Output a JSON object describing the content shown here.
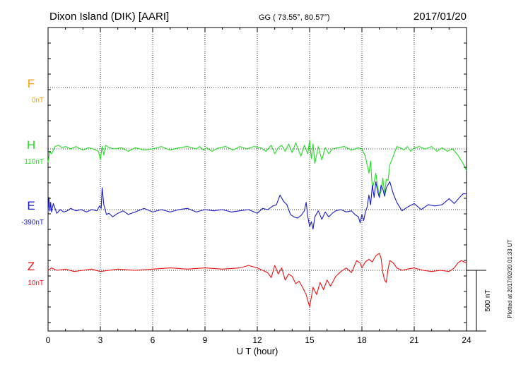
{
  "header": {
    "station": "Dixon Island (DIK)  [AARI]",
    "coords": "GG ( 73.55°,  80.57°)",
    "date": "2017/01/20"
  },
  "footer": {
    "xlabel": "U T (hour)",
    "plotted": "Plotted at 2017/02/20 01:33 UT"
  },
  "chart_data": {
    "type": "line",
    "xlim": [
      0,
      24
    ],
    "x_ticks": [
      0,
      3,
      6,
      9,
      12,
      15,
      18,
      21,
      24
    ],
    "x_tick_labels": [
      "0",
      "3",
      "6",
      "9",
      "12",
      "15",
      "18",
      "21",
      "24"
    ],
    "grid": true,
    "scale_bar": {
      "value_nT": 500,
      "label": "500 nT"
    },
    "series": [
      {
        "name": "F",
        "baseline_label": "0nT",
        "color": "#f5a500",
        "x": [],
        "y": []
      },
      {
        "name": "H",
        "baseline_label": "110nT",
        "color": "#22dd22",
        "x": [
          0,
          0.1,
          0.2,
          0.4,
          0.6,
          0.8,
          1.0,
          1.3,
          1.6,
          2.0,
          2.3,
          2.6,
          2.9,
          3.0,
          3.1,
          3.2,
          3.3,
          3.5,
          3.8,
          4.2,
          4.6,
          5.0,
          5.5,
          6.0,
          6.5,
          7.0,
          7.5,
          8.0,
          8.5,
          8.7,
          8.9,
          9.1,
          9.4,
          9.8,
          10.2,
          10.6,
          11.0,
          11.4,
          11.8,
          12.2,
          12.5,
          12.8,
          13.0,
          13.2,
          13.4,
          13.6,
          13.8,
          14.0,
          14.2,
          14.5,
          14.7,
          14.9,
          15.0,
          15.1,
          15.2,
          15.3,
          15.5,
          15.7,
          15.9,
          16.1,
          16.3,
          16.6,
          17.0,
          17.4,
          17.8,
          18.0,
          18.2,
          18.4,
          18.5,
          18.6,
          18.7,
          18.8,
          18.9,
          19.0,
          19.1,
          19.2,
          19.3,
          19.4,
          19.5,
          19.6,
          19.8,
          20.0,
          20.2,
          20.4,
          20.6,
          20.8,
          21.0,
          21.3,
          21.6,
          22.0,
          22.3,
          22.6,
          22.9,
          23.2,
          23.5,
          23.8,
          24.0
        ],
        "y": [
          -110,
          -20,
          -40,
          20,
          30,
          10,
          20,
          0,
          20,
          -10,
          10,
          0,
          -20,
          -90,
          20,
          -50,
          30,
          10,
          0,
          10,
          -20,
          10,
          -10,
          0,
          20,
          -10,
          10,
          20,
          0,
          20,
          -10,
          10,
          -20,
          10,
          20,
          -10,
          20,
          0,
          20,
          10,
          -20,
          30,
          -40,
          10,
          30,
          -20,
          40,
          -30,
          50,
          -60,
          30,
          -40,
          70,
          -80,
          40,
          -120,
          20,
          -90,
          10,
          -40,
          0,
          10,
          20,
          -10,
          10,
          0,
          -60,
          -200,
          -100,
          -330,
          -270,
          -200,
          -310,
          -380,
          -350,
          -240,
          -370,
          -250,
          -260,
          -130,
          -60,
          20,
          10,
          -10,
          20,
          -20,
          10,
          20,
          0,
          20,
          -20,
          10,
          -20,
          0,
          -50,
          -120,
          -180
        ]
      },
      {
        "name": "E",
        "baseline_label": "-390nT",
        "color": "#1a1acc",
        "x": [
          0,
          0.05,
          0.1,
          0.15,
          0.2,
          0.3,
          0.4,
          0.5,
          0.7,
          0.9,
          1.1,
          1.3,
          1.6,
          1.9,
          2.2,
          2.5,
          2.8,
          2.95,
          3.05,
          3.1,
          3.2,
          3.35,
          3.5,
          3.7,
          4.0,
          4.3,
          4.6,
          5.0,
          5.5,
          6.0,
          6.5,
          7.0,
          7.5,
          8.0,
          8.5,
          9.0,
          9.5,
          10.0,
          10.5,
          11.0,
          11.5,
          12.0,
          12.3,
          12.6,
          12.9,
          13.1,
          13.3,
          13.5,
          13.7,
          13.9,
          14.1,
          14.3,
          14.5,
          14.7,
          14.8,
          14.9,
          15.0,
          15.1,
          15.2,
          15.3,
          15.5,
          15.7,
          15.9,
          16.1,
          16.3,
          16.5,
          16.8,
          17.1,
          17.4,
          17.6,
          17.8,
          17.9,
          18.0,
          18.1,
          18.2,
          18.3,
          18.4,
          18.5,
          18.6,
          18.7,
          18.8,
          18.9,
          19.0,
          19.1,
          19.2,
          19.3,
          19.4,
          19.6,
          19.8,
          20.0,
          20.3,
          20.6,
          21.0,
          21.4,
          21.8,
          22.2,
          22.6,
          23.0,
          23.3,
          23.6,
          23.8,
          24.0
        ],
        "y": [
          -20,
          100,
          -10,
          60,
          -20,
          50,
          10,
          -30,
          0,
          -20,
          -10,
          10,
          -10,
          0,
          -20,
          0,
          -10,
          30,
          10,
          180,
          40,
          -40,
          -30,
          -60,
          -30,
          -10,
          -40,
          -20,
          10,
          -20,
          0,
          -20,
          0,
          10,
          -20,
          0,
          -10,
          0,
          -20,
          -10,
          0,
          -30,
          10,
          0,
          30,
          40,
          120,
          70,
          40,
          -40,
          -60,
          -70,
          -50,
          -10,
          60,
          -60,
          -140,
          -100,
          -160,
          -60,
          -10,
          -80,
          -20,
          -60,
          -30,
          -10,
          0,
          -20,
          -10,
          -40,
          -60,
          -110,
          -40,
          -90,
          -20,
          20,
          120,
          40,
          200,
          100,
          230,
          150,
          100,
          200,
          170,
          110,
          180,
          230,
          130,
          60,
          -10,
          20,
          50,
          0,
          40,
          30,
          40,
          90,
          50,
          100,
          130,
          130
        ]
      },
      {
        "name": "Z",
        "baseline_label": "10nT",
        "color": "#ee1111",
        "x": [
          0,
          0.2,
          0.5,
          1.0,
          1.5,
          2.0,
          2.5,
          3.0,
          3.5,
          4.0,
          5.0,
          6.0,
          7.0,
          8.0,
          9.0,
          10.0,
          11.0,
          11.5,
          12.0,
          12.3,
          12.6,
          12.8,
          13.0,
          13.2,
          13.4,
          13.6,
          13.8,
          14.0,
          14.2,
          14.4,
          14.6,
          14.8,
          14.9,
          15.0,
          15.1,
          15.2,
          15.4,
          15.6,
          15.8,
          16.0,
          16.2,
          16.5,
          16.8,
          17.1,
          17.4,
          17.7,
          17.9,
          18.0,
          18.2,
          18.4,
          18.6,
          18.8,
          19.0,
          19.1,
          19.2,
          19.3,
          19.4,
          19.5,
          19.6,
          19.8,
          20.0,
          20.3,
          20.6,
          21.0,
          21.5,
          22.0,
          22.5,
          23.0,
          23.3,
          23.5,
          23.7,
          24.0
        ],
        "y": [
          0,
          20,
          0,
          10,
          -10,
          0,
          10,
          -10,
          0,
          10,
          0,
          10,
          20,
          10,
          20,
          10,
          20,
          40,
          20,
          0,
          -20,
          -60,
          40,
          -30,
          20,
          -80,
          -30,
          -50,
          -110,
          -90,
          -140,
          -200,
          -250,
          -300,
          -220,
          -140,
          -200,
          -100,
          -160,
          -80,
          -130,
          -50,
          -10,
          20,
          -20,
          80,
          60,
          20,
          70,
          90,
          70,
          120,
          140,
          100,
          -20,
          -80,
          -100,
          10,
          80,
          60,
          20,
          0,
          10,
          20,
          0,
          -10,
          0,
          -10,
          20,
          60,
          80,
          60
        ]
      }
    ]
  }
}
